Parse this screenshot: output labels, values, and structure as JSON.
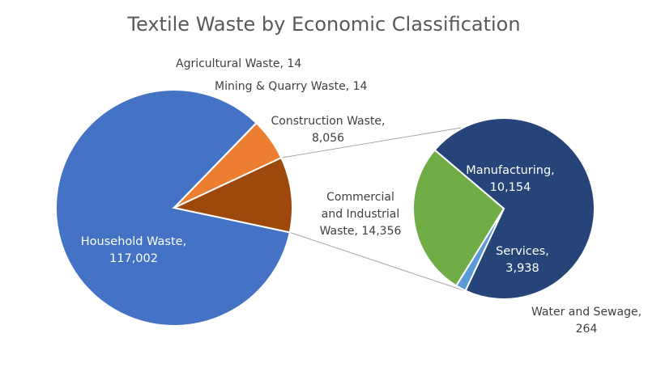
{
  "chart_data": {
    "type": "pie",
    "title": "Textile Waste by Economic Classification",
    "main_pie": {
      "slices": [
        {
          "name": "Household Waste",
          "value": 117002,
          "color": "#4472C4",
          "label": [
            "Household Waste,",
            "117,002"
          ]
        },
        {
          "name": "Construction Waste",
          "value": 8056,
          "color": "#ED7D31",
          "label": [
            "Construction Waste,",
            "8,056"
          ]
        },
        {
          "name": "Commercial and Industrial Waste",
          "value": 14356,
          "color": "#9E480E",
          "label": [
            "Commercial",
            "and Industrial",
            "Waste, 14,356"
          ]
        },
        {
          "name": "Mining & Quarry Waste",
          "value": 14,
          "color": "#A5A5A5",
          "label": [
            "Mining & Quarry Waste, 14"
          ]
        },
        {
          "name": "Agricultural Waste",
          "value": 14,
          "color": "#FFC000",
          "label": [
            "Agricultural Waste, 14"
          ]
        }
      ]
    },
    "breakout_pie": {
      "of": "Commercial and Industrial Waste",
      "slices": [
        {
          "name": "Manufacturing",
          "value": 10154,
          "color": "#264478",
          "label": [
            "Manufacturing,",
            "10,154"
          ]
        },
        {
          "name": "Water and Sewage",
          "value": 264,
          "color": "#5B9BD5",
          "label": [
            "Water and Sewage,",
            "264"
          ]
        },
        {
          "name": "Services",
          "value": 3938,
          "color": "#70AD47",
          "label": [
            "Services,",
            "3,938"
          ]
        }
      ]
    }
  }
}
